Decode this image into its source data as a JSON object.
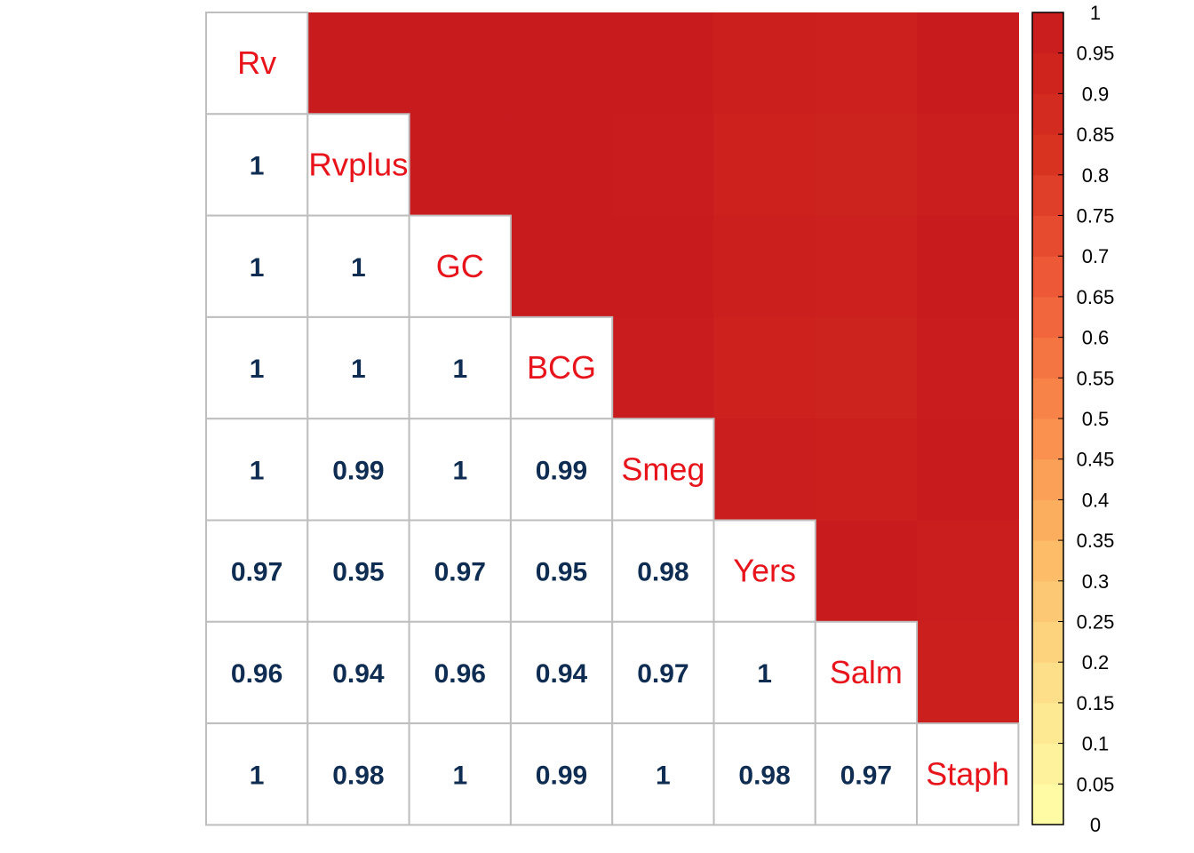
{
  "chart_data": {
    "type": "heatmap",
    "variables": [
      "Rv",
      "Rvplus",
      "GC",
      "BCG",
      "Smeg",
      "Yers",
      "Salm",
      "Staph"
    ],
    "matrix": [
      [
        1,
        1,
        1,
        1,
        1,
        0.97,
        0.96,
        1
      ],
      [
        1,
        1,
        1,
        1,
        0.99,
        0.95,
        0.94,
        0.98
      ],
      [
        1,
        1,
        1,
        1,
        1,
        0.97,
        0.96,
        1
      ],
      [
        1,
        1,
        1,
        1,
        0.99,
        0.95,
        0.94,
        0.99
      ],
      [
        1,
        0.99,
        1,
        0.99,
        1,
        0.98,
        0.97,
        1
      ],
      [
        0.97,
        0.95,
        0.97,
        0.95,
        0.98,
        1,
        1,
        0.98
      ],
      [
        0.96,
        0.94,
        0.96,
        0.94,
        0.97,
        1,
        1,
        0.97
      ],
      [
        1,
        0.98,
        1,
        0.99,
        1,
        0.98,
        0.97,
        1
      ]
    ],
    "lower_labels": [
      [
        "1"
      ],
      [
        "1",
        "1"
      ],
      [
        "1",
        "1",
        "1"
      ],
      [
        "1",
        "0.99",
        "1",
        "0.99"
      ],
      [
        "0.97",
        "0.95",
        "0.97",
        "0.95",
        "0.98"
      ],
      [
        "0.96",
        "0.94",
        "0.96",
        "0.94",
        "0.97",
        "1"
      ],
      [
        "1",
        "0.98",
        "1",
        "0.99",
        "1",
        "0.98",
        "0.97"
      ]
    ],
    "lower_panel": "numbers",
    "upper_panel": "color",
    "colorbar": {
      "range": [
        0,
        1
      ],
      "ticks": [
        "0",
        "0.05",
        "0.1",
        "0.15",
        "0.2",
        "0.25",
        "0.3",
        "0.35",
        "0.4",
        "0.45",
        "0.5",
        "0.55",
        "0.6",
        "0.65",
        "0.7",
        "0.75",
        "0.8",
        "0.85",
        "0.9",
        "0.95",
        "1"
      ]
    },
    "colors": {
      "label_text": "#E8141B",
      "number_text": "#0F2D52",
      "grid": "#BEBEBE",
      "palette": [
        "#FFFFAA",
        "#FEE18B",
        "#FDBA66",
        "#F98A4B",
        "#EE5A38",
        "#D7301F",
        "#C81B1E"
      ]
    }
  }
}
